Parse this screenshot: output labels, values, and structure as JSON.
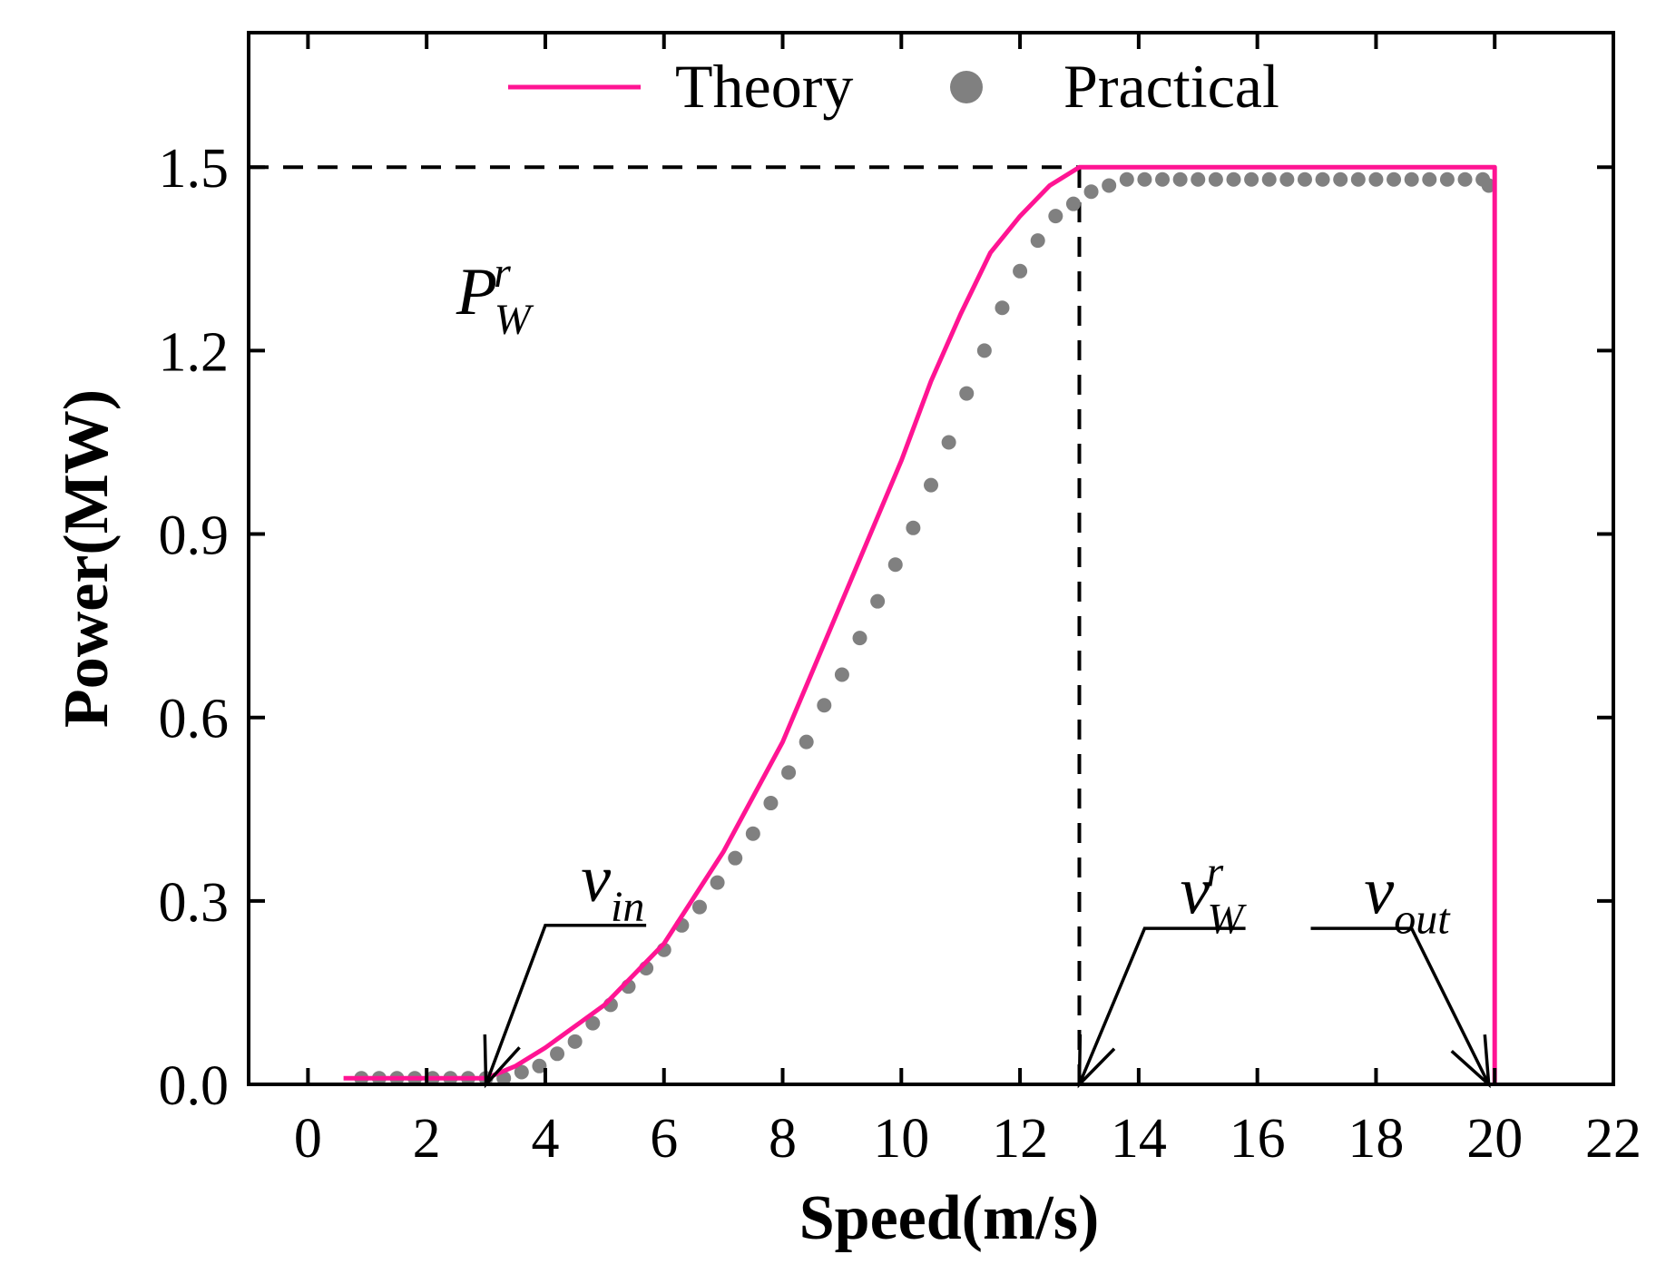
{
  "chart_data": {
    "type": "line",
    "title": "",
    "xlabel": "Speed(m/s)",
    "ylabel": "Power(MW)",
    "xlim": [
      -1,
      22
    ],
    "ylim": [
      0,
      1.72
    ],
    "xticks": [
      0,
      2,
      4,
      6,
      8,
      10,
      12,
      14,
      16,
      18,
      20,
      22
    ],
    "yticks": [
      0.0,
      0.3,
      0.6,
      0.9,
      1.2,
      1.5
    ],
    "ytick_labels": [
      "0.0",
      "0.3",
      "0.6",
      "0.9",
      "1.2",
      "1.5"
    ],
    "legend": {
      "position": "top",
      "entries": [
        "Theory",
        "Practical"
      ]
    },
    "colors": {
      "theory": "#ff1493",
      "practical": "#808080",
      "axis": "#000000"
    },
    "series": [
      {
        "name": "Theory",
        "kind": "line",
        "x": [
          0.6,
          1.0,
          2.0,
          3.0,
          3.5,
          4.0,
          5.0,
          6.0,
          7.0,
          8.0,
          9.0,
          10.0,
          10.5,
          11.0,
          11.5,
          12.0,
          12.5,
          13.0,
          20.0,
          20.0
        ],
        "y": [
          0.01,
          0.01,
          0.01,
          0.01,
          0.03,
          0.06,
          0.13,
          0.23,
          0.38,
          0.56,
          0.79,
          1.02,
          1.15,
          1.26,
          1.36,
          1.42,
          1.47,
          1.5,
          1.5,
          0.0
        ]
      },
      {
        "name": "Practical",
        "kind": "scatter",
        "x": [
          0.9,
          1.2,
          1.5,
          1.8,
          2.1,
          2.4,
          2.7,
          3.0,
          3.3,
          3.6,
          3.9,
          4.2,
          4.5,
          4.8,
          5.1,
          5.4,
          5.7,
          6.0,
          6.3,
          6.6,
          6.9,
          7.2,
          7.5,
          7.8,
          8.1,
          8.4,
          8.7,
          9.0,
          9.3,
          9.6,
          9.9,
          10.2,
          10.5,
          10.8,
          11.1,
          11.4,
          11.7,
          12.0,
          12.3,
          12.6,
          12.9,
          13.2,
          13.5,
          13.8,
          14.1,
          14.4,
          14.7,
          15.0,
          15.3,
          15.6,
          15.9,
          16.2,
          16.5,
          16.8,
          17.1,
          17.4,
          17.7,
          18.0,
          18.3,
          18.6,
          18.9,
          19.2,
          19.5,
          19.8,
          19.9
        ],
        "y": [
          0.01,
          0.01,
          0.01,
          0.01,
          0.01,
          0.01,
          0.01,
          0.01,
          0.01,
          0.02,
          0.03,
          0.05,
          0.07,
          0.1,
          0.13,
          0.16,
          0.19,
          0.22,
          0.26,
          0.29,
          0.33,
          0.37,
          0.41,
          0.46,
          0.51,
          0.56,
          0.62,
          0.67,
          0.73,
          0.79,
          0.85,
          0.91,
          0.98,
          1.05,
          1.13,
          1.2,
          1.27,
          1.33,
          1.38,
          1.42,
          1.44,
          1.46,
          1.47,
          1.48,
          1.48,
          1.48,
          1.48,
          1.48,
          1.48,
          1.48,
          1.48,
          1.48,
          1.48,
          1.48,
          1.48,
          1.48,
          1.48,
          1.48,
          1.48,
          1.48,
          1.48,
          1.48,
          1.48,
          1.48,
          1.47
        ]
      }
    ],
    "reference_lines": [
      {
        "kind": "horizontal",
        "y": 1.5,
        "x_from": -1,
        "x_to": 13,
        "style": "dashed"
      },
      {
        "kind": "vertical",
        "x": 13,
        "y_from": 0,
        "y_to": 1.5,
        "style": "dashed"
      }
    ],
    "annotations": [
      {
        "id": "p-rated",
        "main": "P",
        "sup": "r",
        "sub": "W",
        "x": 2.5,
        "y": 1.26
      },
      {
        "id": "v-in",
        "main": "v",
        "sub": "in",
        "x": 4.6,
        "y": 0.3,
        "arrow_to": [
          3.0,
          0.0
        ],
        "elbow": [
          4.0,
          0.26
        ],
        "line_end": [
          5.7,
          0.26
        ]
      },
      {
        "id": "v-rated",
        "main": "v",
        "sup": "r",
        "sub": "W",
        "x": 14.7,
        "y": 0.28,
        "arrow_to": [
          13.0,
          0.0
        ],
        "elbow": [
          14.1,
          0.255
        ],
        "line_end": [
          15.8,
          0.255
        ]
      },
      {
        "id": "v-out",
        "main": "v",
        "sub": "out",
        "x": 17.8,
        "y": 0.28,
        "arrow_to": [
          19.9,
          0.0
        ],
        "elbow": [
          18.6,
          0.255
        ],
        "line_end": [
          16.9,
          0.255
        ]
      }
    ]
  }
}
